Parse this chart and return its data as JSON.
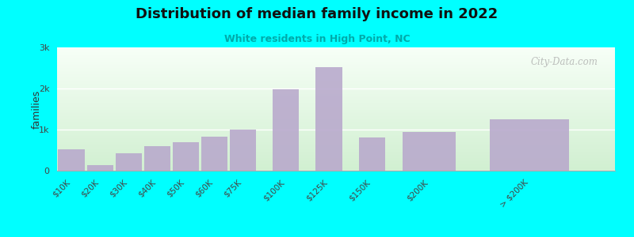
{
  "title": "Distribution of median family income in 2022",
  "subtitle": "White residents in High Point, NC",
  "ylabel": "families",
  "background_color": "#00FFFF",
  "bar_color": "#b8a8cc",
  "categories": [
    "$10K",
    "$20K",
    "$30K",
    "$40K",
    "$50K",
    "$60K",
    "$75K",
    "$100K",
    "$125K",
    "$150K",
    "$200K",
    "> $200K"
  ],
  "values": [
    520,
    130,
    430,
    600,
    700,
    820,
    1000,
    1980,
    2520,
    800,
    950,
    1250
  ],
  "bar_widths": [
    1,
    1,
    1,
    1,
    1,
    1,
    1,
    1,
    1,
    1,
    2,
    3
  ],
  "bar_positions": [
    0.5,
    1.5,
    2.5,
    3.5,
    4.5,
    5.5,
    6.5,
    8.0,
    9.5,
    11.0,
    13.0,
    16.5
  ],
  "ylim": [
    0,
    3000
  ],
  "yticks": [
    0,
    1000,
    2000,
    3000
  ],
  "ytick_labels": [
    "0",
    "1k",
    "2k",
    "3k"
  ],
  "watermark": "City-Data.com",
  "subtitle_color": "#00AAAA",
  "title_color": "#111111"
}
